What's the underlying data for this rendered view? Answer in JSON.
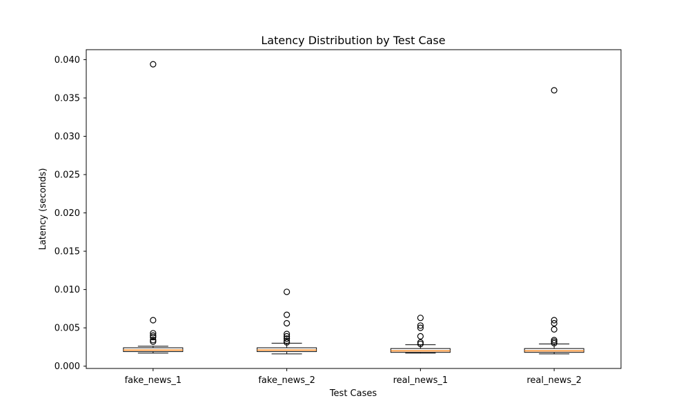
{
  "chart_data": {
    "type": "boxplot",
    "title": "Latency Distribution by Test Case",
    "xlabel": "Test Cases",
    "ylabel": "Latency (seconds)",
    "ylim": [
      -0.0003,
      0.0413
    ],
    "yticks": [
      0.0,
      0.005,
      0.01,
      0.015,
      0.02,
      0.025,
      0.03,
      0.035,
      0.04
    ],
    "ytick_labels": [
      "0.000",
      "0.005",
      "0.010",
      "0.015",
      "0.020",
      "0.025",
      "0.030",
      "0.035",
      "0.040"
    ],
    "categories": [
      "fake_news_1",
      "fake_news_2",
      "real_news_1",
      "real_news_2"
    ],
    "grid": false,
    "colors": {
      "median": "#ff7f0e",
      "box": "#000000",
      "flier": "#000000"
    },
    "boxes": [
      {
        "whisker_low": 0.0017,
        "q1": 0.0019,
        "median": 0.0021,
        "q3": 0.0024,
        "whisker_high": 0.0026,
        "outliers": [
          0.0394,
          0.006,
          0.0043,
          0.004,
          0.0038,
          0.0034,
          0.0032
        ]
      },
      {
        "whisker_low": 0.0016,
        "q1": 0.0019,
        "median": 0.0021,
        "q3": 0.0024,
        "whisker_high": 0.003,
        "outliers": [
          0.0097,
          0.0067,
          0.0056,
          0.0042,
          0.0039,
          0.0036,
          0.0033,
          0.0031
        ]
      },
      {
        "whisker_low": 0.0017,
        "q1": 0.0018,
        "median": 0.002,
        "q3": 0.0023,
        "whisker_high": 0.0028,
        "outliers": [
          0.0063,
          0.0053,
          0.005,
          0.0039,
          0.0031,
          0.0029
        ]
      },
      {
        "whisker_low": 0.0016,
        "q1": 0.0018,
        "median": 0.002,
        "q3": 0.0023,
        "whisker_high": 0.0029,
        "outliers": [
          0.036,
          0.006,
          0.0056,
          0.0048,
          0.0034,
          0.0032,
          0.003
        ]
      }
    ]
  }
}
